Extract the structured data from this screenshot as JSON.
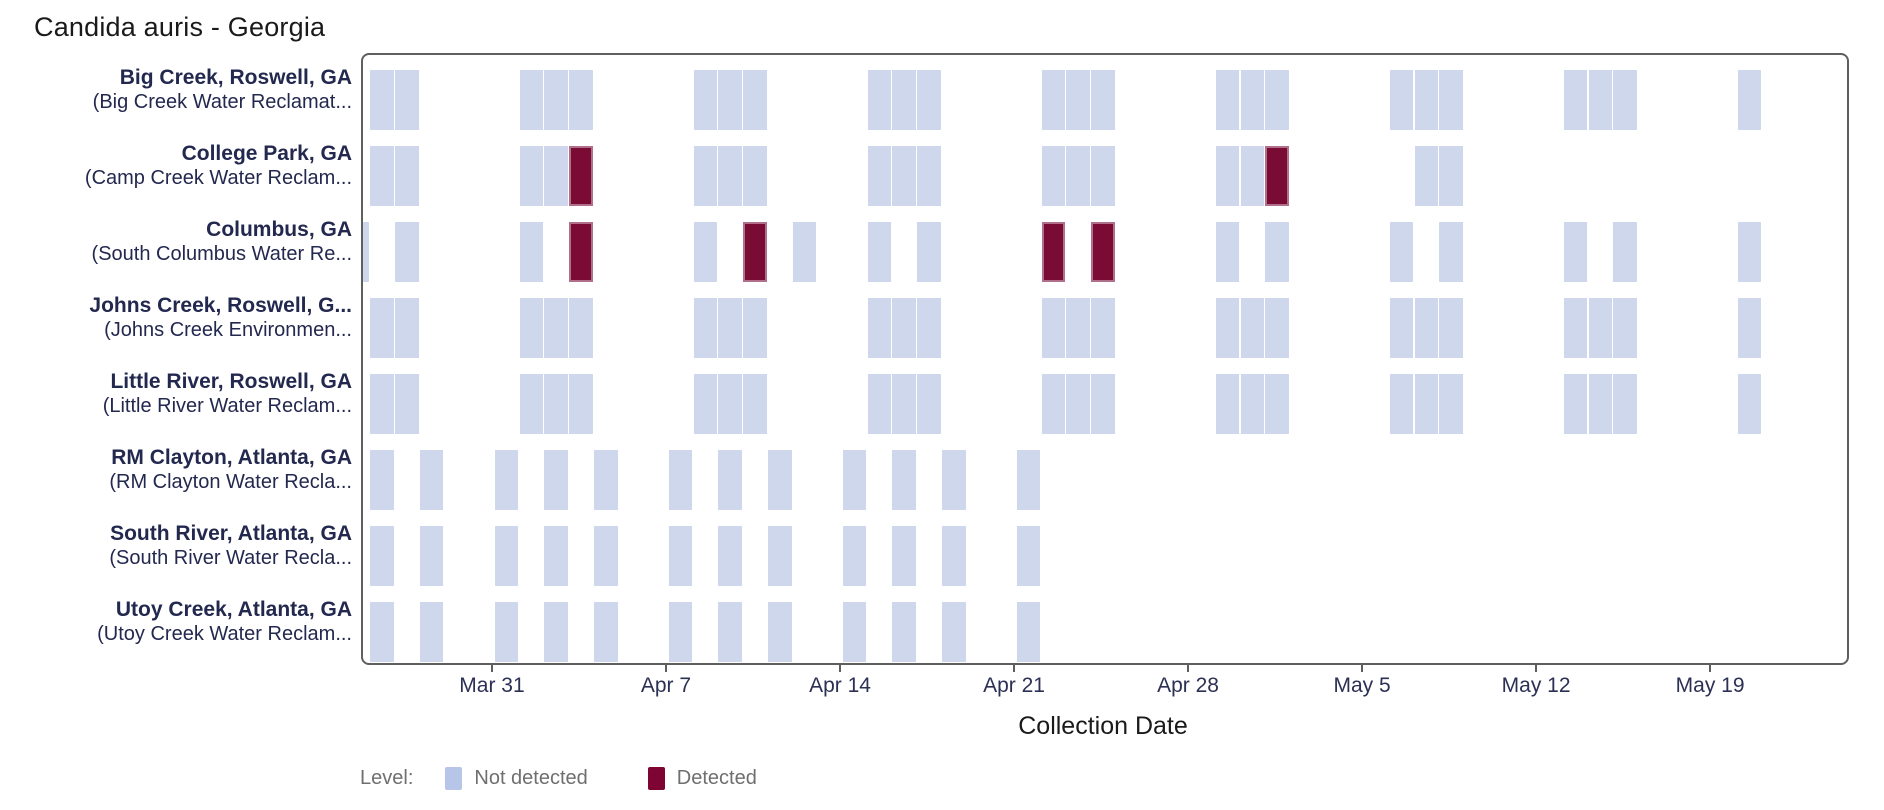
{
  "title": "Candida auris - Georgia",
  "chart_data": {
    "type": "heatmap",
    "title": "Candida auris - Georgia",
    "xlabel": "Collection Date",
    "x_axis": {
      "tick_labels": [
        "Mar 31",
        "Apr 7",
        "Apr 14",
        "Apr 21",
        "Apr 28",
        "May 5",
        "May 12",
        "May 19"
      ],
      "domain_start": "Mar 25",
      "domain_end": "May 24",
      "unit": "day"
    },
    "legend": {
      "label": "Level:",
      "entries": [
        {
          "label": "Not detected",
          "color": "#b7c5e8"
        },
        {
          "label": "Detected",
          "color": "#7d0433"
        }
      ]
    },
    "colors": {
      "not_detected_tile": "#cfd7ec",
      "detected_tile": "#7a0b33",
      "detected_tile_border": "#b06f8b",
      "panel_border": "#5f5f5f",
      "label_navy": "#23284f"
    },
    "sites": [
      {
        "name": "Big Creek, Roswell, GA",
        "facility": "(Big Creek Water Reclamat...",
        "samples": [
          {
            "date": "Mar 26",
            "detected": false
          },
          {
            "date": "Mar 27",
            "detected": false
          },
          {
            "date": "Apr 1",
            "detected": false
          },
          {
            "date": "Apr 2",
            "detected": false
          },
          {
            "date": "Apr 3",
            "detected": false
          },
          {
            "date": "Apr 8",
            "detected": false
          },
          {
            "date": "Apr 9",
            "detected": false
          },
          {
            "date": "Apr 10",
            "detected": false
          },
          {
            "date": "Apr 15",
            "detected": false
          },
          {
            "date": "Apr 16",
            "detected": false
          },
          {
            "date": "Apr 17",
            "detected": false
          },
          {
            "date": "Apr 22",
            "detected": false
          },
          {
            "date": "Apr 23",
            "detected": false
          },
          {
            "date": "Apr 24",
            "detected": false
          },
          {
            "date": "Apr 29",
            "detected": false
          },
          {
            "date": "Apr 30",
            "detected": false
          },
          {
            "date": "May 1",
            "detected": false
          },
          {
            "date": "May 6",
            "detected": false
          },
          {
            "date": "May 7",
            "detected": false
          },
          {
            "date": "May 8",
            "detected": false
          },
          {
            "date": "May 13",
            "detected": false
          },
          {
            "date": "May 14",
            "detected": false
          },
          {
            "date": "May 15",
            "detected": false
          },
          {
            "date": "May 20",
            "detected": false
          }
        ]
      },
      {
        "name": "College Park, GA",
        "facility": "(Camp Creek Water Reclam...",
        "samples": [
          {
            "date": "Mar 26",
            "detected": false
          },
          {
            "date": "Mar 27",
            "detected": false
          },
          {
            "date": "Apr 1",
            "detected": false
          },
          {
            "date": "Apr 2",
            "detected": false
          },
          {
            "date": "Apr 3",
            "detected": true
          },
          {
            "date": "Apr 8",
            "detected": false
          },
          {
            "date": "Apr 9",
            "detected": false
          },
          {
            "date": "Apr 10",
            "detected": false
          },
          {
            "date": "Apr 15",
            "detected": false
          },
          {
            "date": "Apr 16",
            "detected": false
          },
          {
            "date": "Apr 17",
            "detected": false
          },
          {
            "date": "Apr 22",
            "detected": false
          },
          {
            "date": "Apr 23",
            "detected": false
          },
          {
            "date": "Apr 24",
            "detected": false
          },
          {
            "date": "Apr 29",
            "detected": false
          },
          {
            "date": "Apr 30",
            "detected": false
          },
          {
            "date": "May 1",
            "detected": true
          },
          {
            "date": "May 7",
            "detected": false
          },
          {
            "date": "May 8",
            "detected": false
          }
        ]
      },
      {
        "name": "Columbus, GA",
        "facility": "(South Columbus Water Re...",
        "samples": [
          {
            "date": "Mar 25",
            "detected": false
          },
          {
            "date": "Mar 27",
            "detected": false
          },
          {
            "date": "Apr 1",
            "detected": false
          },
          {
            "date": "Apr 3",
            "detected": true
          },
          {
            "date": "Apr 8",
            "detected": false
          },
          {
            "date": "Apr 10",
            "detected": true
          },
          {
            "date": "Apr 12",
            "detected": false
          },
          {
            "date": "Apr 15",
            "detected": false
          },
          {
            "date": "Apr 17",
            "detected": false
          },
          {
            "date": "Apr 22",
            "detected": true
          },
          {
            "date": "Apr 24",
            "detected": true
          },
          {
            "date": "Apr 29",
            "detected": false
          },
          {
            "date": "May 1",
            "detected": false
          },
          {
            "date": "May 6",
            "detected": false
          },
          {
            "date": "May 8",
            "detected": false
          },
          {
            "date": "May 13",
            "detected": false
          },
          {
            "date": "May 15",
            "detected": false
          },
          {
            "date": "May 20",
            "detected": false
          }
        ]
      },
      {
        "name": "Johns Creek, Roswell, G...",
        "facility": "(Johns Creek Environmen...",
        "samples": [
          {
            "date": "Mar 26",
            "detected": false
          },
          {
            "date": "Mar 27",
            "detected": false
          },
          {
            "date": "Apr 1",
            "detected": false
          },
          {
            "date": "Apr 2",
            "detected": false
          },
          {
            "date": "Apr 3",
            "detected": false
          },
          {
            "date": "Apr 8",
            "detected": false
          },
          {
            "date": "Apr 9",
            "detected": false
          },
          {
            "date": "Apr 10",
            "detected": false
          },
          {
            "date": "Apr 15",
            "detected": false
          },
          {
            "date": "Apr 16",
            "detected": false
          },
          {
            "date": "Apr 17",
            "detected": false
          },
          {
            "date": "Apr 22",
            "detected": false
          },
          {
            "date": "Apr 23",
            "detected": false
          },
          {
            "date": "Apr 24",
            "detected": false
          },
          {
            "date": "Apr 29",
            "detected": false
          },
          {
            "date": "Apr 30",
            "detected": false
          },
          {
            "date": "May 1",
            "detected": false
          },
          {
            "date": "May 6",
            "detected": false
          },
          {
            "date": "May 7",
            "detected": false
          },
          {
            "date": "May 8",
            "detected": false
          },
          {
            "date": "May 13",
            "detected": false
          },
          {
            "date": "May 14",
            "detected": false
          },
          {
            "date": "May 15",
            "detected": false
          },
          {
            "date": "May 20",
            "detected": false
          }
        ]
      },
      {
        "name": "Little River, Roswell, GA",
        "facility": "(Little River Water Reclam...",
        "samples": [
          {
            "date": "Mar 26",
            "detected": false
          },
          {
            "date": "Mar 27",
            "detected": false
          },
          {
            "date": "Apr 1",
            "detected": false
          },
          {
            "date": "Apr 2",
            "detected": false
          },
          {
            "date": "Apr 3",
            "detected": false
          },
          {
            "date": "Apr 8",
            "detected": false
          },
          {
            "date": "Apr 9",
            "detected": false
          },
          {
            "date": "Apr 10",
            "detected": false
          },
          {
            "date": "Apr 15",
            "detected": false
          },
          {
            "date": "Apr 16",
            "detected": false
          },
          {
            "date": "Apr 17",
            "detected": false
          },
          {
            "date": "Apr 22",
            "detected": false
          },
          {
            "date": "Apr 23",
            "detected": false
          },
          {
            "date": "Apr 24",
            "detected": false
          },
          {
            "date": "Apr 29",
            "detected": false
          },
          {
            "date": "Apr 30",
            "detected": false
          },
          {
            "date": "May 1",
            "detected": false
          },
          {
            "date": "May 6",
            "detected": false
          },
          {
            "date": "May 7",
            "detected": false
          },
          {
            "date": "May 8",
            "detected": false
          },
          {
            "date": "May 13",
            "detected": false
          },
          {
            "date": "May 14",
            "detected": false
          },
          {
            "date": "May 15",
            "detected": false
          },
          {
            "date": "May 20",
            "detected": false
          }
        ]
      },
      {
        "name": "RM Clayton, Atlanta, GA",
        "facility": "(RM Clayton Water Recla...",
        "samples": [
          {
            "date": "Mar 26",
            "detected": false
          },
          {
            "date": "Mar 28",
            "detected": false
          },
          {
            "date": "Mar 31",
            "detected": false
          },
          {
            "date": "Apr 2",
            "detected": false
          },
          {
            "date": "Apr 4",
            "detected": false
          },
          {
            "date": "Apr 7",
            "detected": false
          },
          {
            "date": "Apr 9",
            "detected": false
          },
          {
            "date": "Apr 11",
            "detected": false
          },
          {
            "date": "Apr 14",
            "detected": false
          },
          {
            "date": "Apr 16",
            "detected": false
          },
          {
            "date": "Apr 18",
            "detected": false
          },
          {
            "date": "Apr 21",
            "detected": false
          }
        ]
      },
      {
        "name": "South River, Atlanta, GA",
        "facility": "(South River Water Recla...",
        "samples": [
          {
            "date": "Mar 26",
            "detected": false
          },
          {
            "date": "Mar 28",
            "detected": false
          },
          {
            "date": "Mar 31",
            "detected": false
          },
          {
            "date": "Apr 2",
            "detected": false
          },
          {
            "date": "Apr 4",
            "detected": false
          },
          {
            "date": "Apr 7",
            "detected": false
          },
          {
            "date": "Apr 9",
            "detected": false
          },
          {
            "date": "Apr 11",
            "detected": false
          },
          {
            "date": "Apr 14",
            "detected": false
          },
          {
            "date": "Apr 16",
            "detected": false
          },
          {
            "date": "Apr 18",
            "detected": false
          },
          {
            "date": "Apr 21",
            "detected": false
          }
        ]
      },
      {
        "name": "Utoy Creek, Atlanta, GA",
        "facility": "(Utoy Creek Water Reclam...",
        "samples": [
          {
            "date": "Mar 26",
            "detected": false
          },
          {
            "date": "Mar 28",
            "detected": false
          },
          {
            "date": "Mar 31",
            "detected": false
          },
          {
            "date": "Apr 2",
            "detected": false
          },
          {
            "date": "Apr 4",
            "detected": false
          },
          {
            "date": "Apr 7",
            "detected": false
          },
          {
            "date": "Apr 9",
            "detected": false
          },
          {
            "date": "Apr 11",
            "detected": false
          },
          {
            "date": "Apr 14",
            "detected": false
          },
          {
            "date": "Apr 16",
            "detected": false
          },
          {
            "date": "Apr 18",
            "detected": false
          },
          {
            "date": "Apr 21",
            "detected": false
          }
        ]
      }
    ]
  }
}
